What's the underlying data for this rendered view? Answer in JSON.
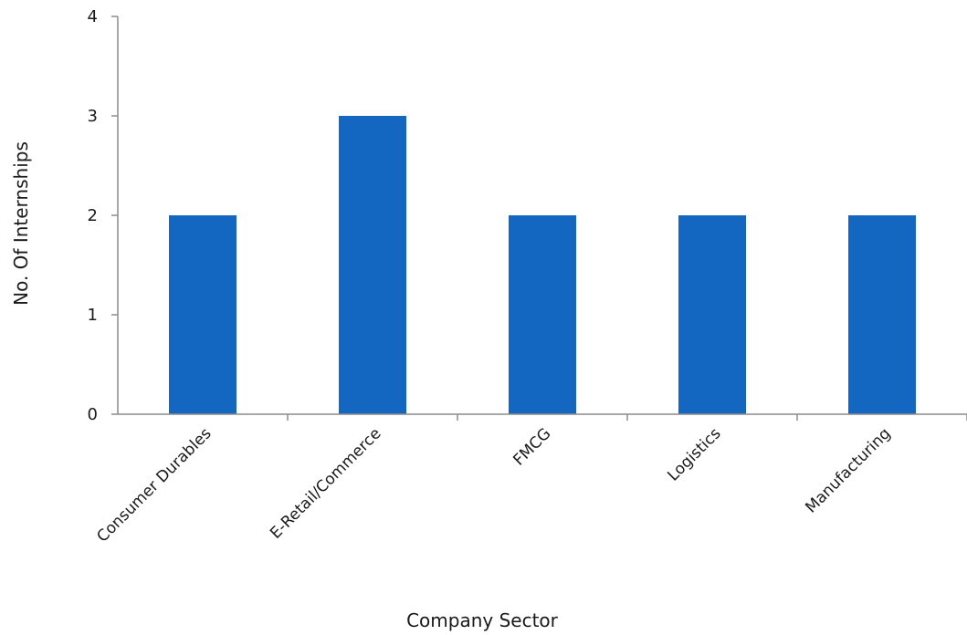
{
  "chart_data": {
    "type": "bar",
    "categories": [
      "Consumer Durables",
      "E-Retail/Commerce",
      "FMCG",
      "Logistics",
      "Manufacturing"
    ],
    "values": [
      2,
      3,
      2,
      2,
      2
    ],
    "title": "",
    "xlabel": "Company Sector",
    "ylabel": "No. Of Internships",
    "ylim": [
      0,
      4
    ],
    "yticks": [
      "0",
      "1",
      "2",
      "3",
      "4"
    ],
    "grid": false,
    "bar_color": "#1467c1",
    "axis_color": "#8c8c8c"
  }
}
